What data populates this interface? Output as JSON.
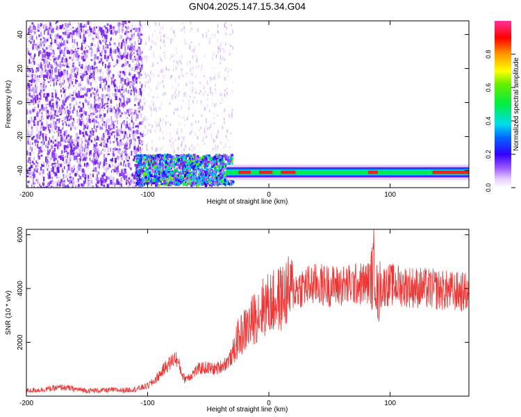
{
  "title": "GN04.2025.147.15.34.G04",
  "chart_data": [
    {
      "type": "heatmap",
      "xlabel": "Height of straight line (km)",
      "ylabel": "Frequency (Hz)",
      "xlim": [
        -200,
        165
      ],
      "ylim": [
        -50,
        48
      ],
      "xticks": [
        -200,
        -100,
        0,
        100
      ],
      "yticks": [
        -40,
        -20,
        0,
        20,
        40
      ],
      "colorbar": {
        "label": "Normalized spectral amplitude",
        "range": [
          0,
          1
        ],
        "ticks": [
          0.0,
          0.2,
          0.4,
          0.6,
          0.8
        ]
      },
      "grid": false
    },
    {
      "type": "line",
      "xlabel": "Height of straight line (km)",
      "ylabel": "SNR (10 * v/v)",
      "xlim": [
        -200,
        165
      ],
      "ylim": [
        0,
        6200
      ],
      "xticks": [
        -200,
        -100,
        0,
        100
      ],
      "yticks": [
        2000,
        4000,
        6000
      ],
      "line_color": "#ee3333",
      "grid": false,
      "series": [
        {
          "x": [
            -200,
            -190,
            -180,
            -170,
            -160,
            -150,
            -140,
            -130,
            -120,
            -110,
            -100,
            -95,
            -90,
            -85,
            -80,
            -77,
            -75,
            -72,
            -70,
            -65,
            -60,
            -55,
            -50,
            -45,
            -40,
            -35,
            -30,
            -27,
            -25,
            -20,
            -15,
            -10,
            -5,
            0,
            5,
            10,
            15,
            20,
            30,
            40,
            50,
            60,
            70,
            80,
            84,
            86,
            87,
            88,
            89,
            90,
            92,
            95,
            100,
            110,
            120,
            130,
            140,
            150,
            165
          ],
          "y": [
            200,
            230,
            280,
            330,
            260,
            210,
            210,
            230,
            220,
            260,
            380,
            550,
            800,
            1100,
            1300,
            1450,
            1250,
            900,
            650,
            750,
            950,
            1050,
            1050,
            1000,
            1100,
            1250,
            1500,
            2000,
            2150,
            2450,
            2700,
            3050,
            3300,
            3450,
            3500,
            3650,
            3850,
            3950,
            4100,
            4150,
            4100,
            4100,
            4150,
            4200,
            4250,
            4500,
            5200,
            4600,
            3900,
            3600,
            4000,
            4100,
            4150,
            4100,
            4050,
            4000,
            3950,
            3900,
            3850
          ]
        }
      ]
    }
  ]
}
